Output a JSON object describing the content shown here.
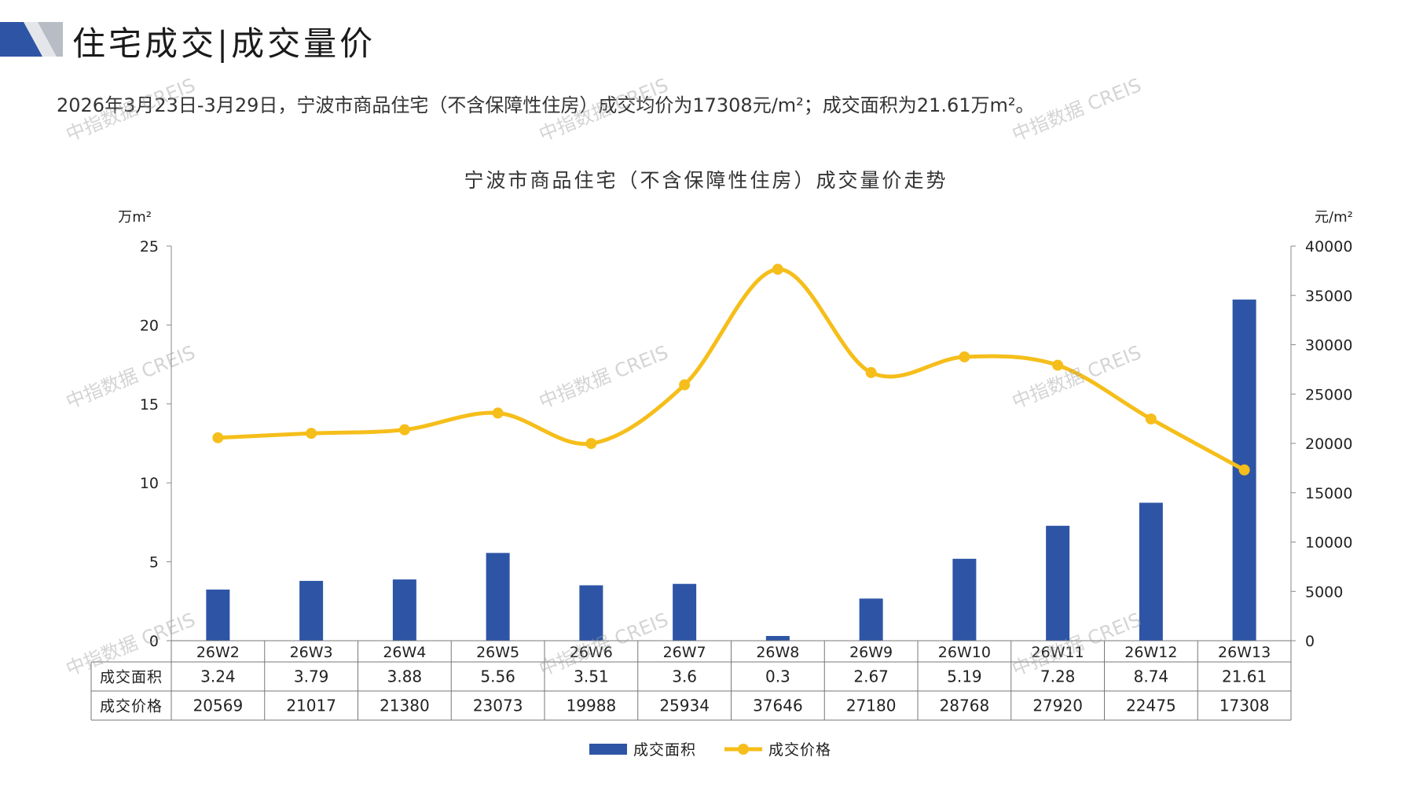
{
  "header": {
    "title": "住宅成交|成交量价"
  },
  "summary": "2026年3月23日-3月29日，宁波市商品住宅（不含保障性住房）成交均价为17308元/m²；成交面积为21.61万m²。",
  "watermark": "中指数据 CREIS",
  "colors": {
    "bar": "#2E55A5",
    "line": "#F5BE1A",
    "logo_blue": "#2E55A5",
    "logo_gray": "#B8BCC4"
  },
  "chart_data": {
    "type": "bar+line",
    "title": "宁波市商品住宅（不含保障性住房）成交量价走势",
    "categories": [
      "26W2",
      "26W3",
      "26W4",
      "26W5",
      "26W6",
      "26W7",
      "26W8",
      "26W9",
      "26W10",
      "26W11",
      "26W12",
      "26W13"
    ],
    "series": [
      {
        "name": "成交面积",
        "type": "bar",
        "axis": "left",
        "values": [
          3.24,
          3.79,
          3.88,
          5.56,
          3.51,
          3.6,
          0.3,
          2.67,
          5.19,
          7.28,
          8.74,
          21.61
        ]
      },
      {
        "name": "成交价格",
        "type": "line",
        "axis": "right",
        "values": [
          20569,
          21017,
          21380,
          23073,
          19988,
          25934,
          37646,
          27180,
          28768,
          27920,
          22475,
          17308
        ]
      }
    ],
    "table_display": {
      "area": [
        "3.24",
        "3.79",
        "3.88",
        "5.56",
        "3.51",
        "3.6",
        "0.3",
        "2.67",
        "5.19",
        "7.28",
        "8.74",
        "21.61"
      ],
      "price": [
        "20569",
        "21017",
        "21380",
        "23073",
        "19988",
        "25934",
        "37646",
        "27180",
        "28768",
        "27920",
        "22475",
        "17308"
      ]
    },
    "y_left": {
      "label": "万m²",
      "min": 0,
      "max": 25,
      "ticks": [
        "0",
        "5",
        "10",
        "15",
        "20",
        "25"
      ]
    },
    "y_right": {
      "label": "元/m²",
      "min": 0,
      "max": 40000,
      "ticks": [
        "0",
        "5000",
        "10000",
        "15000",
        "20000",
        "25000",
        "30000",
        "35000",
        "40000"
      ]
    },
    "legend": {
      "placement": "bottom"
    }
  }
}
